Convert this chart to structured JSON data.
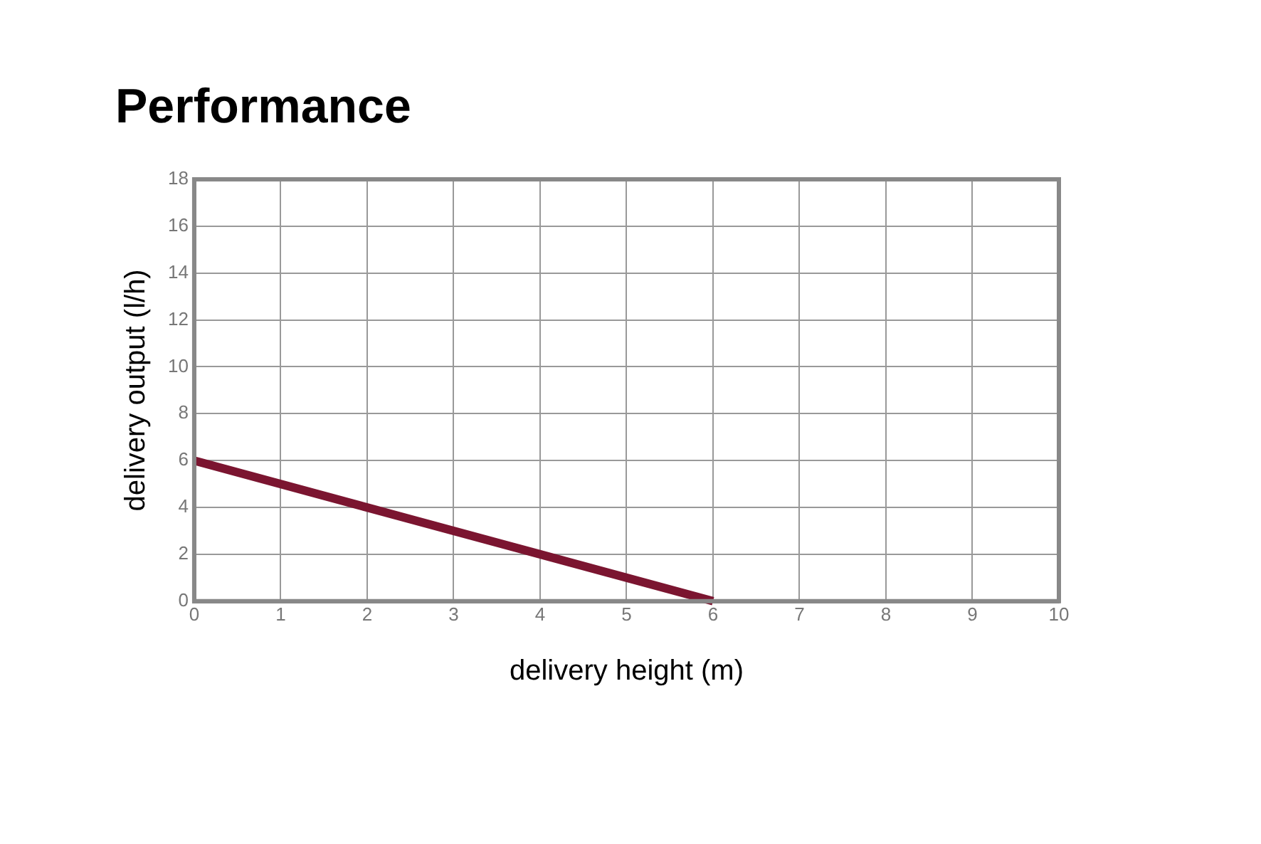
{
  "chart_data": {
    "type": "line",
    "title": "Performance",
    "xlabel": "delivery height (m)",
    "ylabel": "delivery output (l/h)",
    "x": [
      0,
      6
    ],
    "series": [
      {
        "color": "#7b1530",
        "values": [
          6,
          0
        ]
      }
    ],
    "xlim": [
      0,
      10
    ],
    "xticks": [
      0,
      1,
      2,
      3,
      4,
      5,
      6,
      7,
      8,
      9,
      10
    ],
    "ylim": [
      0,
      18
    ],
    "yticks": [
      0,
      2,
      4,
      6,
      8,
      10,
      12,
      14,
      16,
      18
    ],
    "grid": true,
    "legend": false,
    "marker": "none",
    "line_style": "solid"
  }
}
